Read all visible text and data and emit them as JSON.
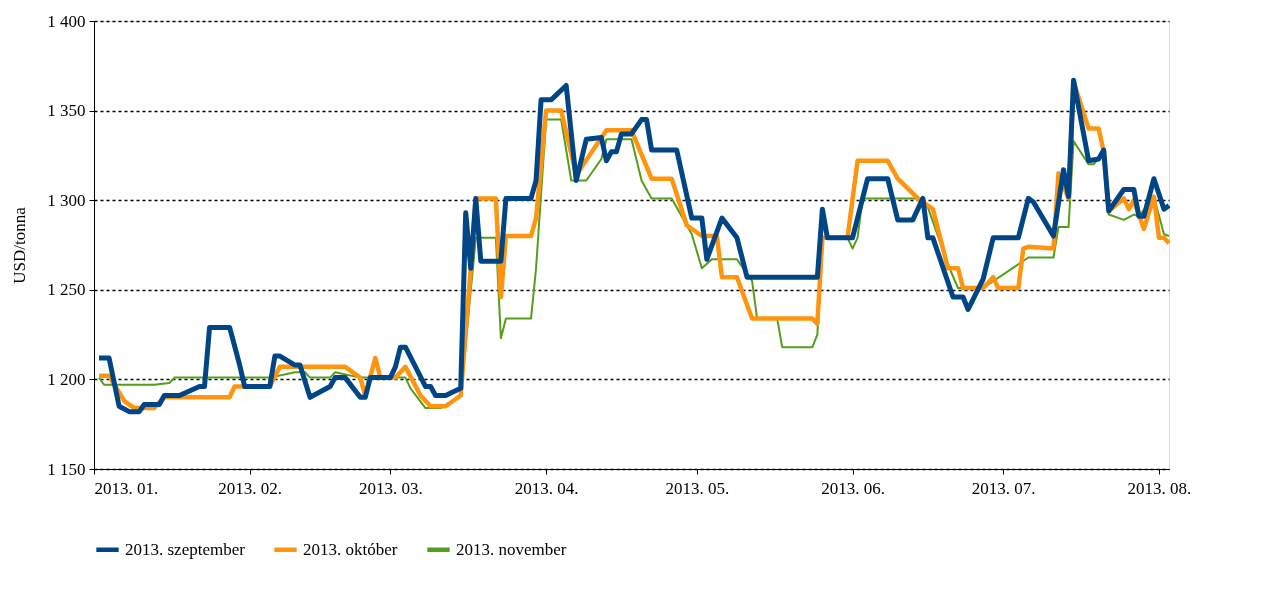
{
  "chart_data": {
    "type": "line",
    "ylabel": "USD/tonna",
    "xlim": [
      "2013-01-01",
      "2013-08-03"
    ],
    "xticks": [
      {
        "value": "2013-01-01",
        "label": "2013. 01."
      },
      {
        "value": "2013-02-01",
        "label": "2013. 02."
      },
      {
        "value": "2013-03-01",
        "label": "2013. 03."
      },
      {
        "value": "2013-04-01",
        "label": "2013. 04."
      },
      {
        "value": "2013-05-01",
        "label": "2013. 05."
      },
      {
        "value": "2013-06-01",
        "label": "2013. 06."
      },
      {
        "value": "2013-07-01",
        "label": "2013. 07."
      },
      {
        "value": "2013-08-01",
        "label": "2013. 08."
      }
    ],
    "ylim": [
      1150,
      1400
    ],
    "yticks": [
      {
        "value": 1150,
        "label": "1 150"
      },
      {
        "value": 1200,
        "label": "1 200"
      },
      {
        "value": 1250,
        "label": "1 250"
      },
      {
        "value": 1300,
        "label": "1 300"
      },
      {
        "value": 1350,
        "label": "1 350"
      },
      {
        "value": 1400,
        "label": "1 400"
      }
    ],
    "grid": "y",
    "legend": "bottom",
    "marker": "none",
    "line_style": "solid",
    "series": [
      {
        "name": "2013. szeptember",
        "color": "#004586",
        "x": [
          "2013-01-02",
          "2013-01-04",
          "2013-01-06",
          "2013-01-08",
          "2013-01-10",
          "2013-01-11",
          "2013-01-14",
          "2013-01-15",
          "2013-01-18",
          "2013-01-22",
          "2013-01-23",
          "2013-01-24",
          "2013-01-28",
          "2013-01-30",
          "2013-01-31",
          "2013-02-05",
          "2013-02-06",
          "2013-02-07",
          "2013-02-10",
          "2013-02-11",
          "2013-02-13",
          "2013-02-17",
          "2013-02-18",
          "2013-02-20",
          "2013-02-23",
          "2013-02-24",
          "2013-02-25",
          "2013-03-01",
          "2013-03-02",
          "2013-03-03",
          "2013-03-04",
          "2013-03-08",
          "2013-03-09",
          "2013-03-10",
          "2013-03-12",
          "2013-03-15",
          "2013-03-16",
          "2013-03-17",
          "2013-03-18",
          "2013-03-19",
          "2013-03-23",
          "2013-03-24",
          "2013-03-29",
          "2013-03-30",
          "2013-03-31",
          "2013-04-02",
          "2013-04-05",
          "2013-04-07",
          "2013-04-09",
          "2013-04-12",
          "2013-04-13",
          "2013-04-14",
          "2013-04-15",
          "2013-04-16",
          "2013-04-18",
          "2013-04-20",
          "2013-04-21",
          "2013-04-22",
          "2013-04-27",
          "2013-04-30",
          "2013-05-02",
          "2013-05-03",
          "2013-05-06",
          "2013-05-09",
          "2013-05-11",
          "2013-05-25",
          "2013-05-26",
          "2013-05-27",
          "2013-06-01",
          "2013-06-04",
          "2013-06-08",
          "2013-06-10",
          "2013-06-13",
          "2013-06-15",
          "2013-06-16",
          "2013-06-17",
          "2013-06-21",
          "2013-06-23",
          "2013-06-24",
          "2013-06-27",
          "2013-06-29",
          "2013-07-04",
          "2013-07-06",
          "2013-07-07",
          "2013-07-11",
          "2013-07-13",
          "2013-07-14",
          "2013-07-15",
          "2013-07-18",
          "2013-07-20",
          "2013-07-21",
          "2013-07-22",
          "2013-07-25",
          "2013-07-27",
          "2013-07-28",
          "2013-07-29",
          "2013-07-31",
          "2013-08-02",
          "2013-08-03"
        ],
        "values": [
          1212,
          1212,
          1185,
          1182,
          1182,
          1186,
          1186,
          1191,
          1191,
          1196,
          1196,
          1229,
          1229,
          1208,
          1196,
          1196,
          1213,
          1213,
          1208,
          1208,
          1190,
          1196,
          1201,
          1201,
          1190,
          1190,
          1201,
          1201,
          1207,
          1218,
          1218,
          1196,
          1196,
          1191,
          1191,
          1195,
          1293,
          1262,
          1301,
          1266,
          1266,
          1301,
          1301,
          1311,
          1356,
          1356,
          1364,
          1311,
          1334,
          1335,
          1322,
          1327,
          1327,
          1337,
          1337,
          1345,
          1345,
          1328,
          1328,
          1290,
          1290,
          1267,
          1290,
          1279,
          1257,
          1257,
          1295,
          1279,
          1279,
          1312,
          1312,
          1289,
          1289,
          1301,
          1279,
          1279,
          1246,
          1246,
          1239,
          1256,
          1279,
          1279,
          1301,
          1299,
          1280,
          1317,
          1302,
          1367,
          1322,
          1323,
          1328,
          1294,
          1306,
          1306,
          1291,
          1291,
          1312,
          1295,
          1297
        ]
      },
      {
        "name": "2013. október",
        "color": "#ff950e",
        "x": [
          "2013-01-02",
          "2013-01-04",
          "2013-01-07",
          "2013-01-09",
          "2013-01-13",
          "2013-01-15",
          "2013-01-28",
          "2013-01-29",
          "2013-02-05",
          "2013-02-07",
          "2013-02-20",
          "2013-02-23",
          "2013-02-24",
          "2013-02-26",
          "2013-02-27",
          "2013-03-02",
          "2013-03-04",
          "2013-03-07",
          "2013-03-09",
          "2013-03-12",
          "2013-03-15",
          "2013-03-17",
          "2013-03-18",
          "2013-03-22",
          "2013-03-23",
          "2013-03-24",
          "2013-03-29",
          "2013-03-30",
          "2013-04-01",
          "2013-04-04",
          "2013-04-07",
          "2013-04-13",
          "2013-04-18",
          "2013-04-22",
          "2013-04-26",
          "2013-04-29",
          "2013-05-02",
          "2013-05-05",
          "2013-05-06",
          "2013-05-09",
          "2013-05-12",
          "2013-05-24",
          "2013-05-25",
          "2013-05-26",
          "2013-05-31",
          "2013-06-02",
          "2013-06-08",
          "2013-06-10",
          "2013-06-14",
          "2013-06-17",
          "2013-06-20",
          "2013-06-22",
          "2013-06-23",
          "2013-06-27",
          "2013-06-29",
          "2013-06-30",
          "2013-07-04",
          "2013-07-05",
          "2013-07-06",
          "2013-07-11",
          "2013-07-12",
          "2013-07-14",
          "2013-07-15",
          "2013-07-18",
          "2013-07-20",
          "2013-07-21",
          "2013-07-22",
          "2013-07-25",
          "2013-07-26",
          "2013-07-27",
          "2013-07-29",
          "2013-07-31",
          "2013-08-01",
          "2013-08-02",
          "2013-08-03"
        ],
        "values": [
          1202,
          1202,
          1188,
          1184,
          1184,
          1190,
          1190,
          1196,
          1196,
          1207,
          1207,
          1201,
          1191,
          1212,
          1201,
          1201,
          1207,
          1191,
          1185,
          1185,
          1191,
          1262,
          1301,
          1301,
          1246,
          1280,
          1280,
          1290,
          1350,
          1350,
          1314,
          1339,
          1339,
          1312,
          1312,
          1286,
          1280,
          1280,
          1257,
          1257,
          1234,
          1234,
          1231,
          1279,
          1279,
          1322,
          1322,
          1312,
          1301,
          1295,
          1262,
          1262,
          1251,
          1251,
          1257,
          1251,
          1251,
          1273,
          1274,
          1273,
          1315,
          1301,
          1366,
          1340,
          1340,
          1327,
          1294,
          1301,
          1295,
          1300,
          1284,
          1302,
          1279,
          1279,
          1276
        ]
      },
      {
        "name": "2013. november",
        "color": "#579d1c",
        "x": [
          "2013-01-02",
          "2013-01-03",
          "2013-01-13",
          "2013-01-16",
          "2013-01-17",
          "2013-02-05",
          "2013-02-10",
          "2013-02-12",
          "2013-02-13",
          "2013-02-17",
          "2013-02-18",
          "2013-02-23",
          "2013-03-04",
          "2013-03-05",
          "2013-03-08",
          "2013-03-11",
          "2013-03-15",
          "2013-03-18",
          "2013-03-22",
          "2013-03-23",
          "2013-03-24",
          "2013-03-29",
          "2013-03-30",
          "2013-04-01",
          "2013-04-04",
          "2013-04-06",
          "2013-04-09",
          "2013-04-12",
          "2013-04-13",
          "2013-04-18",
          "2013-04-20",
          "2013-04-22",
          "2013-04-26",
          "2013-04-30",
          "2013-05-02",
          "2013-05-04",
          "2013-05-09",
          "2013-05-12",
          "2013-05-13",
          "2013-05-17",
          "2013-05-18",
          "2013-05-24",
          "2013-05-25",
          "2013-05-26",
          "2013-05-31",
          "2013-06-01",
          "2013-06-02",
          "2013-06-03",
          "2013-06-14",
          "2013-06-16",
          "2013-06-20",
          "2013-06-22",
          "2013-06-27",
          "2013-07-06",
          "2013-07-11",
          "2013-07-12",
          "2013-07-14",
          "2013-07-15",
          "2013-07-18",
          "2013-07-19",
          "2013-07-21",
          "2013-07-22",
          "2013-07-25",
          "2013-07-27",
          "2013-07-28",
          "2013-07-31",
          "2013-08-02",
          "2013-08-03"
        ],
        "values": [
          1201,
          1197,
          1197,
          1198,
          1201,
          1201,
          1204,
          1204,
          1201,
          1201,
          1204,
          1201,
          1201,
          1195,
          1184,
          1184,
          1191,
          1279,
          1279,
          1223,
          1234,
          1234,
          1262,
          1345,
          1345,
          1311,
          1311,
          1323,
          1334,
          1334,
          1311,
          1301,
          1301,
          1281,
          1262,
          1267,
          1267,
          1255,
          1234,
          1234,
          1218,
          1218,
          1225,
          1279,
          1279,
          1273,
          1279,
          1301,
          1301,
          1296,
          1264,
          1251,
          1251,
          1268,
          1268,
          1285,
          1285,
          1333,
          1320,
          1320,
          1327,
          1292,
          1289,
          1292,
          1291,
          1302,
          1281,
          1280
        ]
      }
    ]
  }
}
